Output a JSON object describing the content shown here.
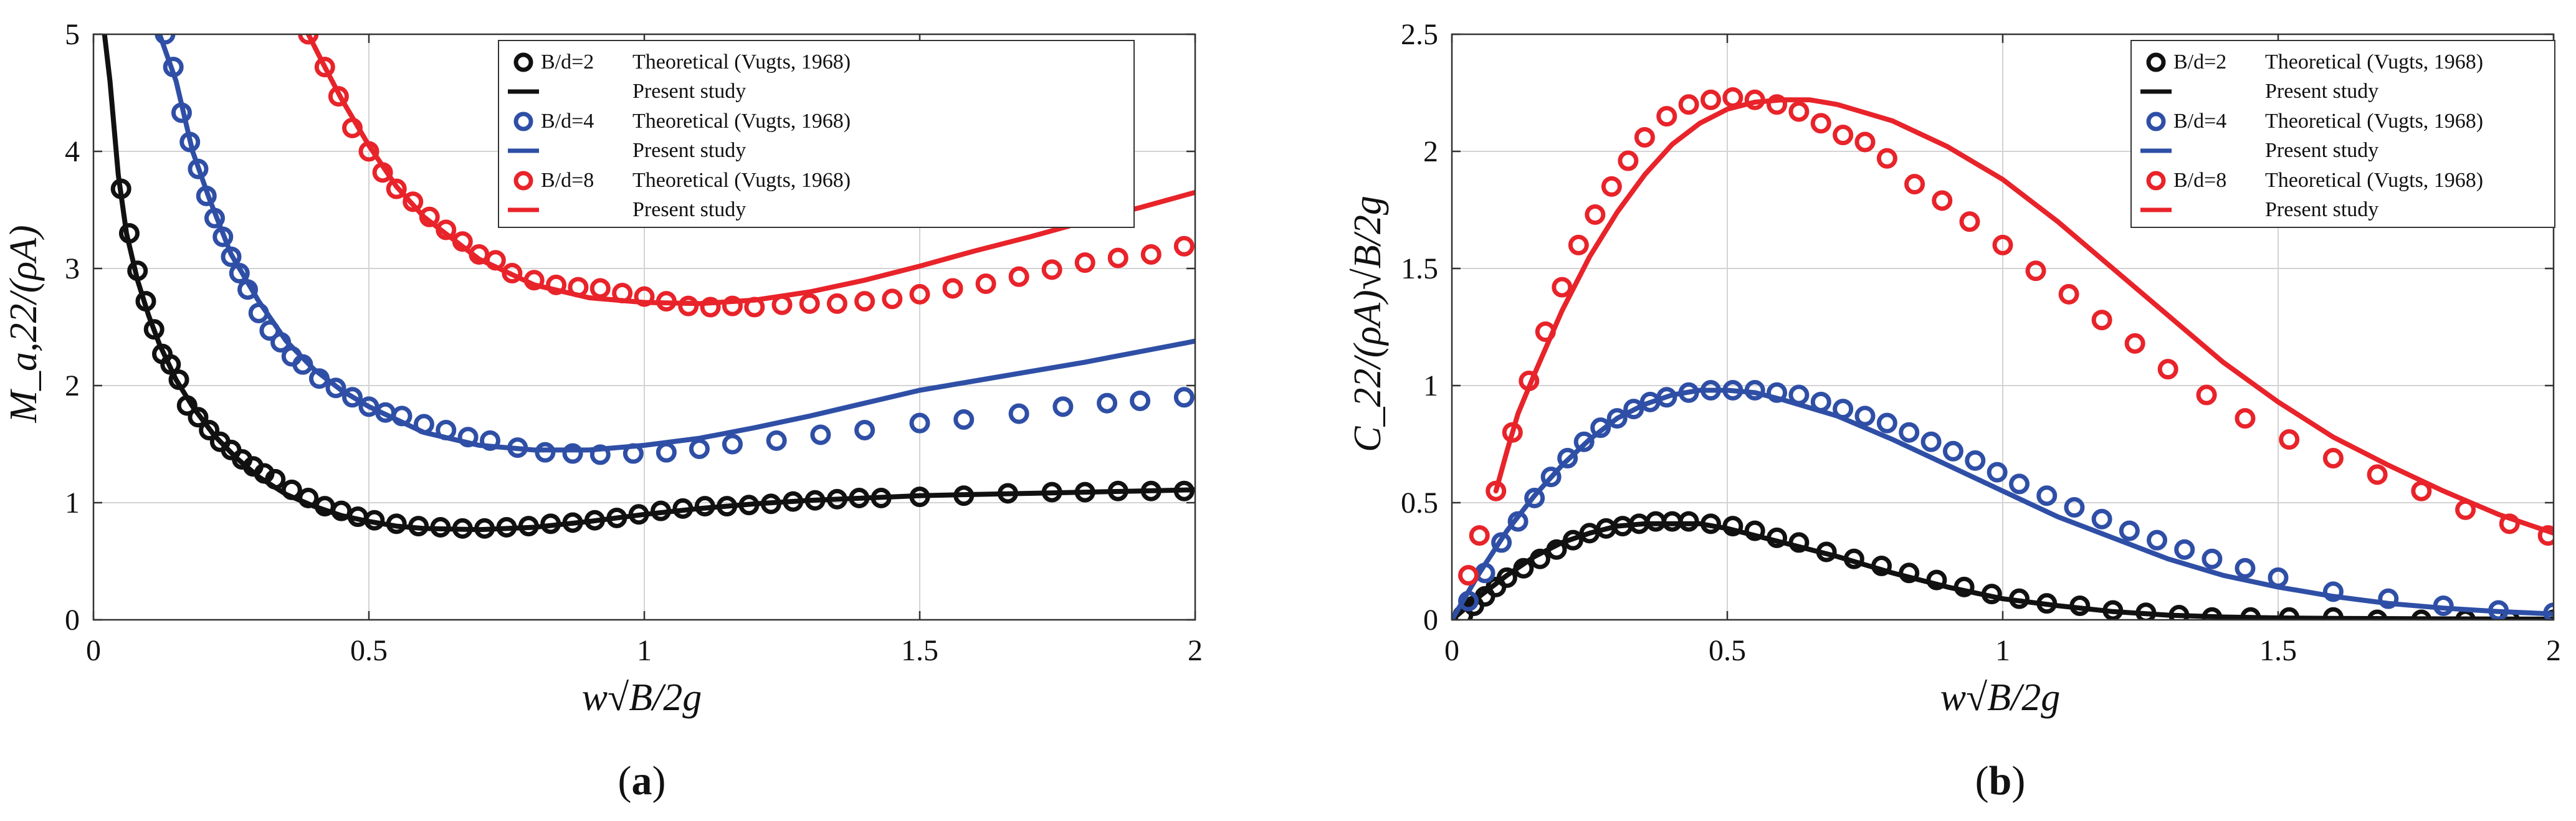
{
  "colors": {
    "black": "#111111",
    "blue": "#2f4fa6",
    "red": "#e8232a"
  },
  "chart_data": [
    {
      "id": "a",
      "type": "line",
      "panel_prefix": "(",
      "panel_letter": "a",
      "panel_suffix": ")",
      "xlabel": "w√B/2g",
      "ylabel": "M_a,22/(ρA)",
      "xlim": [
        0,
        2
      ],
      "ylim": [
        0,
        5
      ],
      "xticks": [
        "0",
        "0.5",
        "1",
        "1.5",
        "2"
      ],
      "yticks": [
        "0",
        "1",
        "2",
        "3",
        "4",
        "5"
      ],
      "grid": true,
      "legend_position": "top-right",
      "legend": [
        {
          "name": "B/d=2",
          "marker_label": "Theoretical (Vugts, 1968)",
          "line_label": "Present study",
          "color": "#111111"
        },
        {
          "name": "B/d=4",
          "marker_label": "Theoretical (Vugts, 1968)",
          "line_label": "Present study",
          "color": "#2f4fa6"
        },
        {
          "name": "B/d=8",
          "marker_label": "Theoretical (Vugts, 1968)",
          "line_label": "Present study",
          "color": "#e8232a"
        }
      ],
      "series": [
        {
          "name": "B/d=2 Present study",
          "style": "line",
          "color": "#111111",
          "x": [
            0.02,
            0.03,
            0.045,
            0.06,
            0.08,
            0.1,
            0.12,
            0.15,
            0.18,
            0.22,
            0.26,
            0.3,
            0.35,
            0.4,
            0.45,
            0.5,
            0.55,
            0.6,
            0.7,
            0.8,
            0.9,
            1.0,
            1.1,
            1.2,
            1.3,
            1.4,
            1.5,
            1.6,
            1.7,
            1.8,
            1.9,
            2.0
          ],
          "y": [
            5.0,
            4.6,
            3.8,
            3.3,
            2.9,
            2.6,
            2.35,
            2.05,
            1.82,
            1.57,
            1.38,
            1.22,
            1.07,
            0.97,
            0.89,
            0.84,
            0.8,
            0.78,
            0.77,
            0.79,
            0.84,
            0.9,
            0.95,
            0.99,
            1.02,
            1.04,
            1.06,
            1.07,
            1.08,
            1.09,
            1.1,
            1.11
          ]
        },
        {
          "name": "B/d=2 Theoretical (Vugts, 1968)",
          "style": "marker",
          "color": "#111111",
          "x": [
            0.05,
            0.065,
            0.08,
            0.095,
            0.11,
            0.125,
            0.14,
            0.155,
            0.17,
            0.19,
            0.21,
            0.23,
            0.25,
            0.27,
            0.29,
            0.31,
            0.33,
            0.36,
            0.39,
            0.42,
            0.45,
            0.48,
            0.51,
            0.55,
            0.59,
            0.63,
            0.67,
            0.71,
            0.75,
            0.79,
            0.83,
            0.87,
            0.91,
            0.95,
            0.99,
            1.03,
            1.07,
            1.11,
            1.15,
            1.19,
            1.23,
            1.27,
            1.31,
            1.35,
            1.39,
            1.43,
            1.5,
            1.58,
            1.66,
            1.74,
            1.8,
            1.86,
            1.92,
            1.98
          ],
          "y": [
            3.68,
            3.3,
            2.98,
            2.72,
            2.48,
            2.27,
            2.18,
            2.05,
            1.83,
            1.73,
            1.62,
            1.52,
            1.45,
            1.37,
            1.31,
            1.25,
            1.2,
            1.11,
            1.04,
            0.97,
            0.93,
            0.88,
            0.85,
            0.82,
            0.8,
            0.79,
            0.78,
            0.78,
            0.79,
            0.8,
            0.82,
            0.83,
            0.85,
            0.87,
            0.9,
            0.93,
            0.95,
            0.97,
            0.97,
            0.98,
            0.99,
            1.01,
            1.02,
            1.03,
            1.04,
            1.04,
            1.05,
            1.06,
            1.08,
            1.09,
            1.09,
            1.1,
            1.1,
            1.1
          ]
        },
        {
          "name": "B/d=4 Present study",
          "style": "line",
          "color": "#2f4fa6",
          "x": [
            0.12,
            0.15,
            0.18,
            0.21,
            0.25,
            0.3,
            0.35,
            0.4,
            0.45,
            0.5,
            0.6,
            0.7,
            0.8,
            0.9,
            1.0,
            1.1,
            1.2,
            1.3,
            1.4,
            1.5,
            1.6,
            1.7,
            1.8,
            1.9,
            2.0
          ],
          "y": [
            5.0,
            4.6,
            4.0,
            3.6,
            3.12,
            2.72,
            2.38,
            2.14,
            1.96,
            1.82,
            1.6,
            1.49,
            1.45,
            1.45,
            1.49,
            1.55,
            1.64,
            1.74,
            1.85,
            1.96,
            2.04,
            2.12,
            2.2,
            2.29,
            2.38
          ]
        },
        {
          "name": "B/d=4 Theoretical (Vugts, 1968)",
          "style": "marker",
          "color": "#2f4fa6",
          "x": [
            0.13,
            0.145,
            0.16,
            0.175,
            0.19,
            0.205,
            0.22,
            0.235,
            0.25,
            0.265,
            0.28,
            0.3,
            0.32,
            0.34,
            0.36,
            0.38,
            0.41,
            0.44,
            0.47,
            0.5,
            0.53,
            0.56,
            0.6,
            0.64,
            0.68,
            0.72,
            0.77,
            0.82,
            0.87,
            0.92,
            0.98,
            1.04,
            1.1,
            1.16,
            1.24,
            1.32,
            1.4,
            1.5,
            1.58,
            1.68,
            1.76,
            1.84,
            1.9,
            1.98
          ],
          "y": [
            5.0,
            4.72,
            4.33,
            4.08,
            3.85,
            3.62,
            3.43,
            3.27,
            3.1,
            2.96,
            2.82,
            2.62,
            2.47,
            2.37,
            2.25,
            2.18,
            2.06,
            1.98,
            1.9,
            1.82,
            1.77,
            1.74,
            1.67,
            1.62,
            1.56,
            1.53,
            1.47,
            1.43,
            1.42,
            1.41,
            1.42,
            1.43,
            1.46,
            1.5,
            1.53,
            1.58,
            1.62,
            1.68,
            1.71,
            1.76,
            1.82,
            1.85,
            1.87,
            1.9
          ]
        },
        {
          "name": "B/d=8 Present study",
          "style": "line",
          "color": "#e8232a",
          "x": [
            0.39,
            0.42,
            0.45,
            0.5,
            0.55,
            0.6,
            0.7,
            0.8,
            0.9,
            1.0,
            1.1,
            1.2,
            1.3,
            1.4,
            1.5,
            1.6,
            1.7,
            1.8,
            1.9,
            2.0
          ],
          "y": [
            5.0,
            4.72,
            4.45,
            4.05,
            3.7,
            3.44,
            3.08,
            2.86,
            2.75,
            2.71,
            2.7,
            2.73,
            2.8,
            2.9,
            3.02,
            3.15,
            3.27,
            3.4,
            3.52,
            3.65
          ]
        },
        {
          "name": "B/d=8 Theoretical (Vugts, 1968)",
          "style": "marker",
          "color": "#e8232a",
          "x": [
            0.39,
            0.42,
            0.445,
            0.47,
            0.5,
            0.525,
            0.55,
            0.58,
            0.61,
            0.64,
            0.67,
            0.7,
            0.73,
            0.76,
            0.8,
            0.84,
            0.88,
            0.92,
            0.96,
            1.0,
            1.04,
            1.08,
            1.12,
            1.16,
            1.2,
            1.25,
            1.3,
            1.35,
            1.4,
            1.45,
            1.5,
            1.56,
            1.62,
            1.68,
            1.74,
            1.8,
            1.86,
            1.92,
            1.98
          ],
          "y": [
            5.0,
            4.72,
            4.47,
            4.2,
            4.0,
            3.82,
            3.68,
            3.57,
            3.44,
            3.33,
            3.23,
            3.12,
            3.07,
            2.96,
            2.9,
            2.86,
            2.84,
            2.83,
            2.79,
            2.76,
            2.72,
            2.68,
            2.67,
            2.68,
            2.67,
            2.69,
            2.7,
            2.7,
            2.72,
            2.74,
            2.78,
            2.83,
            2.87,
            2.93,
            2.99,
            3.05,
            3.09,
            3.12,
            3.19
          ]
        }
      ]
    },
    {
      "id": "b",
      "type": "line",
      "panel_prefix": "(",
      "panel_letter": "b",
      "panel_suffix": ")",
      "xlabel": "w√B/2g",
      "ylabel": "C_22/(ρA)√B/2g",
      "xlim": [
        0,
        2
      ],
      "ylim": [
        0,
        2.5
      ],
      "xticks": [
        "0",
        "0.5",
        "1",
        "1.5",
        "2"
      ],
      "yticks": [
        "0",
        "0.5",
        "1",
        "1.5",
        "2",
        "2.5"
      ],
      "grid": true,
      "legend_position": "top-right",
      "legend": [
        {
          "name": "B/d=2",
          "marker_label": "Theoretical (Vugts, 1968)",
          "line_label": "Present study",
          "color": "#111111"
        },
        {
          "name": "B/d=4",
          "marker_label": "Theoretical (Vugts, 1968)",
          "line_label": "Present study",
          "color": "#2f4fa6"
        },
        {
          "name": "B/d=8",
          "marker_label": "Theoretical (Vugts, 1968)",
          "line_label": "Present study",
          "color": "#e8232a"
        }
      ],
      "series": [
        {
          "name": "B/d=2 Present study",
          "style": "line",
          "color": "#111111",
          "x": [
            0.0,
            0.05,
            0.1,
            0.15,
            0.2,
            0.25,
            0.3,
            0.35,
            0.4,
            0.45,
            0.5,
            0.55,
            0.6,
            0.7,
            0.8,
            0.9,
            1.0,
            1.1,
            1.2,
            1.3,
            1.4,
            1.5,
            1.6,
            1.8,
            2.0
          ],
          "y": [
            0.0,
            0.1,
            0.19,
            0.27,
            0.33,
            0.37,
            0.4,
            0.41,
            0.41,
            0.41,
            0.39,
            0.36,
            0.33,
            0.27,
            0.2,
            0.14,
            0.09,
            0.06,
            0.035,
            0.02,
            0.012,
            0.008,
            0.006,
            0.004,
            0.003
          ]
        },
        {
          "name": "B/d=2 Theoretical (Vugts, 1968)",
          "style": "marker",
          "color": "#111111",
          "x": [
            0.02,
            0.04,
            0.06,
            0.08,
            0.1,
            0.13,
            0.16,
            0.19,
            0.22,
            0.25,
            0.28,
            0.31,
            0.34,
            0.37,
            0.4,
            0.43,
            0.47,
            0.51,
            0.55,
            0.59,
            0.63,
            0.68,
            0.73,
            0.78,
            0.83,
            0.88,
            0.93,
            0.98,
            1.03,
            1.08,
            1.14,
            1.2,
            1.26,
            1.32,
            1.38,
            1.45,
            1.52,
            1.6,
            1.68,
            1.76,
            1.84,
            1.92,
            2.0
          ],
          "y": [
            0.02,
            0.06,
            0.1,
            0.14,
            0.18,
            0.22,
            0.26,
            0.3,
            0.34,
            0.37,
            0.39,
            0.4,
            0.41,
            0.42,
            0.42,
            0.42,
            0.41,
            0.4,
            0.38,
            0.35,
            0.33,
            0.29,
            0.26,
            0.23,
            0.2,
            0.17,
            0.14,
            0.11,
            0.09,
            0.07,
            0.06,
            0.04,
            0.03,
            0.02,
            0.01,
            0.01,
            0.01,
            0.01,
            0.0,
            0.0,
            0.0,
            0.0,
            0.0
          ]
        },
        {
          "name": "B/d=4 Present study",
          "style": "line",
          "color": "#2f4fa6",
          "x": [
            0.0,
            0.05,
            0.1,
            0.15,
            0.2,
            0.25,
            0.3,
            0.35,
            0.4,
            0.45,
            0.5,
            0.55,
            0.6,
            0.7,
            0.8,
            0.9,
            1.0,
            1.1,
            1.2,
            1.3,
            1.4,
            1.5,
            1.6,
            1.7,
            1.8,
            1.9,
            2.0
          ],
          "y": [
            0.0,
            0.2,
            0.38,
            0.53,
            0.66,
            0.77,
            0.86,
            0.92,
            0.96,
            0.98,
            0.98,
            0.97,
            0.94,
            0.87,
            0.77,
            0.66,
            0.55,
            0.44,
            0.35,
            0.26,
            0.19,
            0.14,
            0.1,
            0.07,
            0.05,
            0.035,
            0.025
          ]
        },
        {
          "name": "B/d=4 Theoretical (Vugts, 1968)",
          "style": "marker",
          "color": "#2f4fa6",
          "x": [
            0.03,
            0.06,
            0.09,
            0.12,
            0.15,
            0.18,
            0.21,
            0.24,
            0.27,
            0.3,
            0.33,
            0.36,
            0.39,
            0.43,
            0.47,
            0.51,
            0.55,
            0.59,
            0.63,
            0.67,
            0.71,
            0.75,
            0.79,
            0.83,
            0.87,
            0.91,
            0.95,
            0.99,
            1.03,
            1.08,
            1.13,
            1.18,
            1.23,
            1.28,
            1.33,
            1.38,
            1.44,
            1.5,
            1.6,
            1.7,
            1.8,
            1.9,
            2.0
          ],
          "y": [
            0.08,
            0.2,
            0.33,
            0.42,
            0.52,
            0.61,
            0.69,
            0.76,
            0.82,
            0.86,
            0.9,
            0.93,
            0.95,
            0.97,
            0.98,
            0.98,
            0.98,
            0.97,
            0.96,
            0.93,
            0.9,
            0.87,
            0.84,
            0.8,
            0.76,
            0.72,
            0.68,
            0.63,
            0.58,
            0.53,
            0.48,
            0.43,
            0.38,
            0.34,
            0.3,
            0.26,
            0.22,
            0.18,
            0.12,
            0.09,
            0.06,
            0.04,
            0.03
          ]
        },
        {
          "name": "B/d=8 Present study",
          "style": "line",
          "color": "#e8232a",
          "x": [
            0.08,
            0.1,
            0.12,
            0.15,
            0.2,
            0.25,
            0.3,
            0.35,
            0.4,
            0.45,
            0.5,
            0.55,
            0.6,
            0.65,
            0.7,
            0.8,
            0.9,
            1.0,
            1.1,
            1.2,
            1.3,
            1.4,
            1.5,
            1.6,
            1.7,
            1.8,
            1.9,
            2.0
          ],
          "y": [
            0.55,
            0.72,
            0.88,
            1.05,
            1.32,
            1.55,
            1.74,
            1.9,
            2.03,
            2.12,
            2.18,
            2.21,
            2.22,
            2.22,
            2.2,
            2.13,
            2.02,
            1.88,
            1.7,
            1.5,
            1.3,
            1.1,
            0.93,
            0.78,
            0.66,
            0.55,
            0.45,
            0.37
          ]
        },
        {
          "name": "B/d=8 Theoretical (Vugts, 1968)",
          "style": "marker",
          "color": "#e8232a",
          "x": [
            0.03,
            0.05,
            0.08,
            0.11,
            0.14,
            0.17,
            0.2,
            0.23,
            0.26,
            0.29,
            0.32,
            0.35,
            0.39,
            0.43,
            0.47,
            0.51,
            0.55,
            0.59,
            0.63,
            0.67,
            0.71,
            0.75,
            0.79,
            0.84,
            0.89,
            0.94,
            1.0,
            1.06,
            1.12,
            1.18,
            1.24,
            1.3,
            1.37,
            1.44,
            1.52,
            1.6,
            1.68,
            1.76,
            1.84,
            1.92,
            1.99
          ],
          "y": [
            0.19,
            0.36,
            0.55,
            0.8,
            1.02,
            1.23,
            1.42,
            1.6,
            1.73,
            1.85,
            1.96,
            2.06,
            2.15,
            2.2,
            2.22,
            2.23,
            2.22,
            2.2,
            2.17,
            2.12,
            2.07,
            2.04,
            1.97,
            1.86,
            1.79,
            1.7,
            1.6,
            1.49,
            1.39,
            1.28,
            1.18,
            1.07,
            0.96,
            0.86,
            0.77,
            0.69,
            0.62,
            0.55,
            0.47,
            0.41,
            0.36
          ]
        }
      ]
    }
  ]
}
